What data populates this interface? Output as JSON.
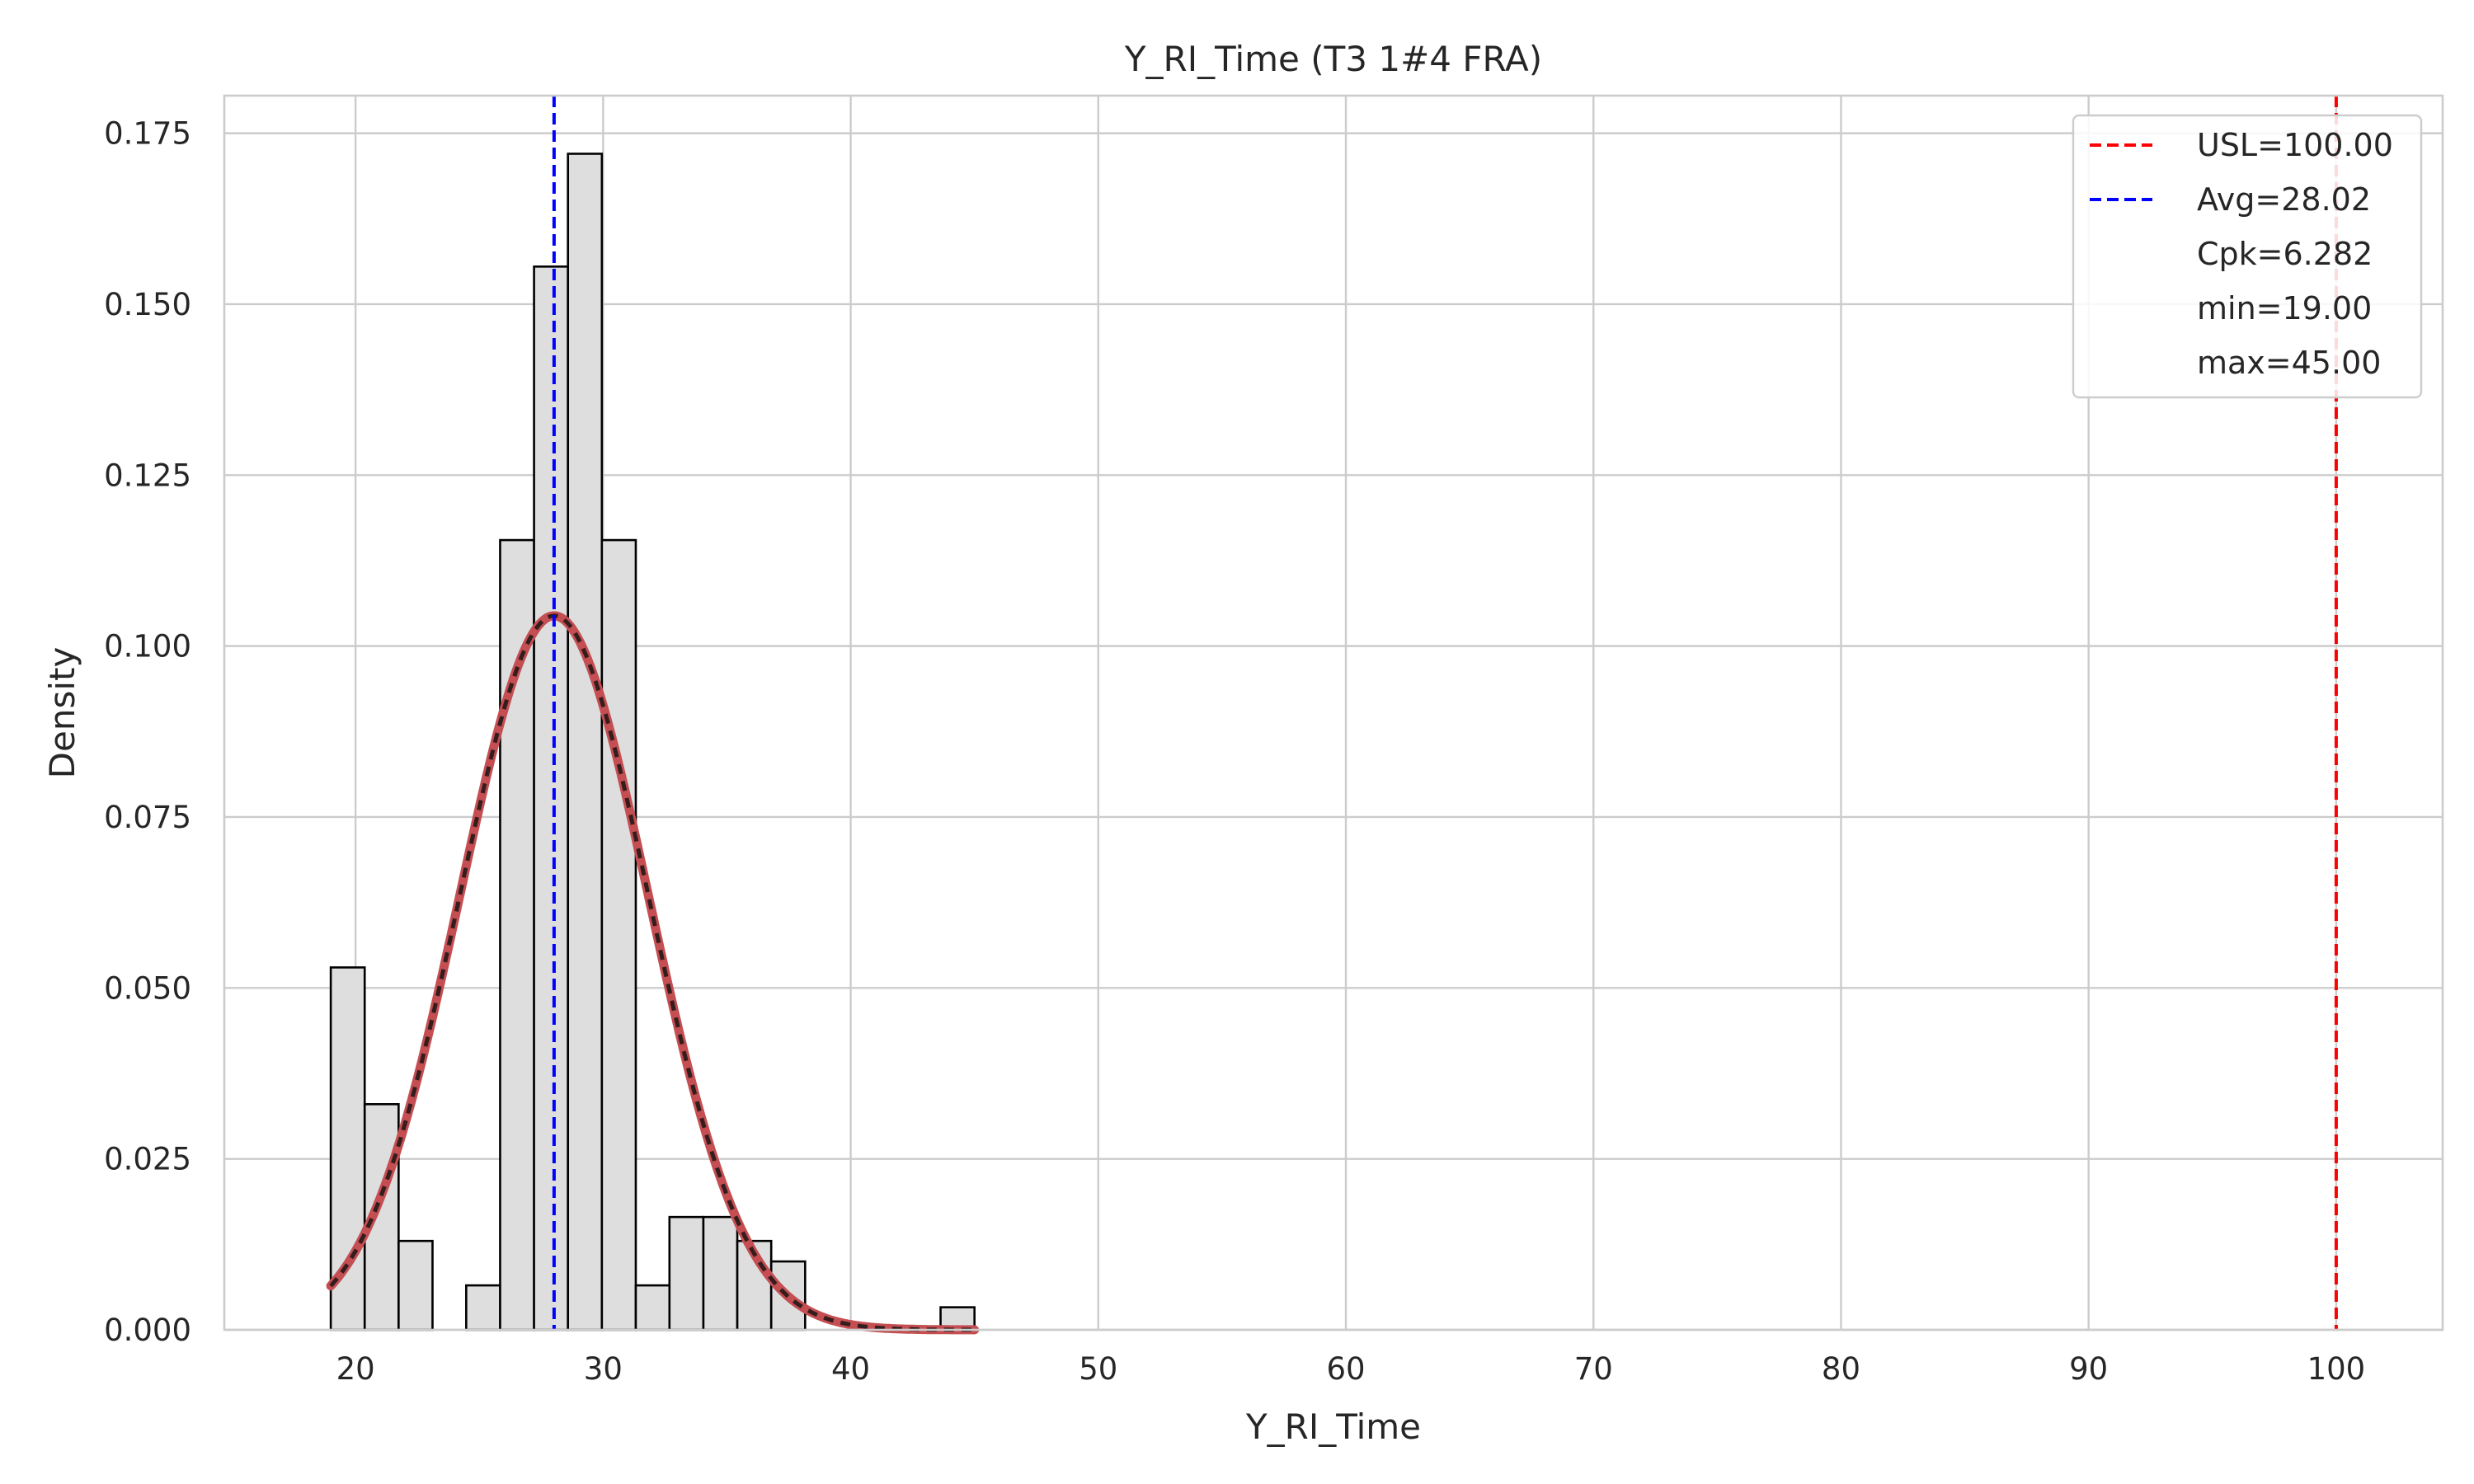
{
  "chart_data": {
    "type": "bar",
    "title": "Y_RI_Time (T3 1#4 FRA)",
    "xlabel": "Y_RI_Time",
    "ylabel": "Density",
    "xlim": [
      14.7,
      104.3
    ],
    "ylim": [
      0,
      0.1805
    ],
    "grid": true,
    "legend_position": "top-right",
    "x_ticks": [
      20,
      30,
      40,
      50,
      60,
      70,
      80,
      90,
      100
    ],
    "x_tick_labels": [
      "20",
      "30",
      "40",
      "50",
      "60",
      "70",
      "80",
      "90",
      "100"
    ],
    "y_ticks": [
      0,
      0.025,
      0.05,
      0.075,
      0.1,
      0.125,
      0.15,
      0.175
    ],
    "y_tick_labels": [
      "0.000",
      "0.025",
      "0.050",
      "0.075",
      "0.100",
      "0.125",
      "0.150",
      "0.175"
    ],
    "histogram": {
      "bin_edges": [
        19.0,
        20.37,
        21.74,
        23.11,
        24.47,
        25.84,
        27.21,
        28.58,
        29.95,
        31.32,
        32.68,
        34.05,
        35.42,
        36.79,
        38.16,
        39.53,
        40.89,
        42.26,
        43.63,
        45.0
      ],
      "densities": [
        0.053,
        0.033,
        0.013,
        0.0,
        0.0065,
        0.1155,
        0.1555,
        0.172,
        0.1155,
        0.0065,
        0.0165,
        0.0165,
        0.013,
        0.01,
        0.0,
        0.0,
        0.0,
        0.0,
        0.0033
      ]
    },
    "fit_curve": {
      "name": "normal fit",
      "mean": 28.02,
      "std": 3.82,
      "x_range": [
        19.0,
        45.0
      ],
      "color": "#c44e52",
      "overlay_color": "#111111"
    },
    "reference_lines": [
      {
        "label": "USL=100.00",
        "x": 100.0,
        "color": "#ff0000",
        "style": "dashed"
      },
      {
        "label": "Avg=28.02",
        "x": 28.02,
        "color": "#0000ff",
        "style": "dashed"
      }
    ],
    "legend": {
      "entries": [
        {
          "label": "USL=100.00",
          "color": "#ff0000",
          "style": "dashed"
        },
        {
          "label": "Avg=28.02",
          "color": "#0000ff",
          "style": "dashed"
        },
        {
          "label": "Cpk=6.282",
          "color": "",
          "style": "none"
        },
        {
          "label": "min=19.00",
          "color": "",
          "style": "none"
        },
        {
          "label": "max=45.00",
          "color": "",
          "style": "none"
        }
      ]
    }
  }
}
